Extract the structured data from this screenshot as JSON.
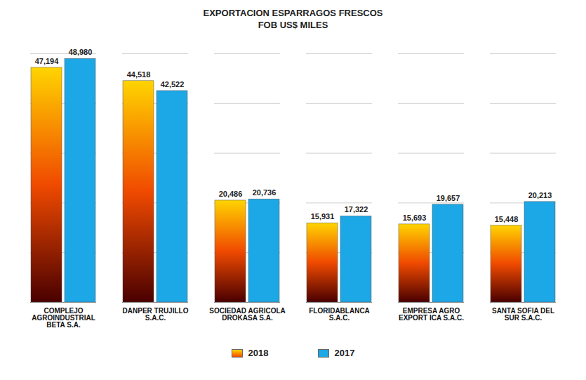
{
  "chart_data": {
    "type": "bar",
    "title": "EXPORTACION ESPARRAGOS FRESCOS",
    "subtitle": "FOB US$ MILES",
    "categories": [
      "COMPLEJO AGROINDUSTRIAL BETA S.A.",
      "DANPER TRUJILLO S.A.C.",
      "SOCIEDAD AGRICOLA DROKASA S.A.",
      "FLORIDABLANCA S.A.C.",
      "EMPRESA AGRO EXPORT ICA S.A.C.",
      "SANTA SOFIA DEL SUR S.A.C."
    ],
    "series": [
      {
        "name": "2018",
        "color": "#ffd400",
        "values": [
          47194,
          44518,
          20486,
          15931,
          15693,
          15448
        ],
        "value_labels": [
          "47,194",
          "44,518",
          "20,486",
          "15,931",
          "15,693",
          "15,448"
        ]
      },
      {
        "name": "2017",
        "color": "#1ca7e6",
        "values": [
          48980,
          42522,
          20736,
          17322,
          19657,
          20213
        ],
        "value_labels": [
          "48,980",
          "42,522",
          "20,736",
          "17,322",
          "19,657",
          "20,213"
        ]
      }
    ],
    "ylim": [
      0,
      50000
    ],
    "yticks": [
      0,
      10000,
      20000,
      30000,
      40000,
      50000
    ],
    "grid": true,
    "legend": "bottom",
    "data_labels": true,
    "tick_labels": "x"
  }
}
